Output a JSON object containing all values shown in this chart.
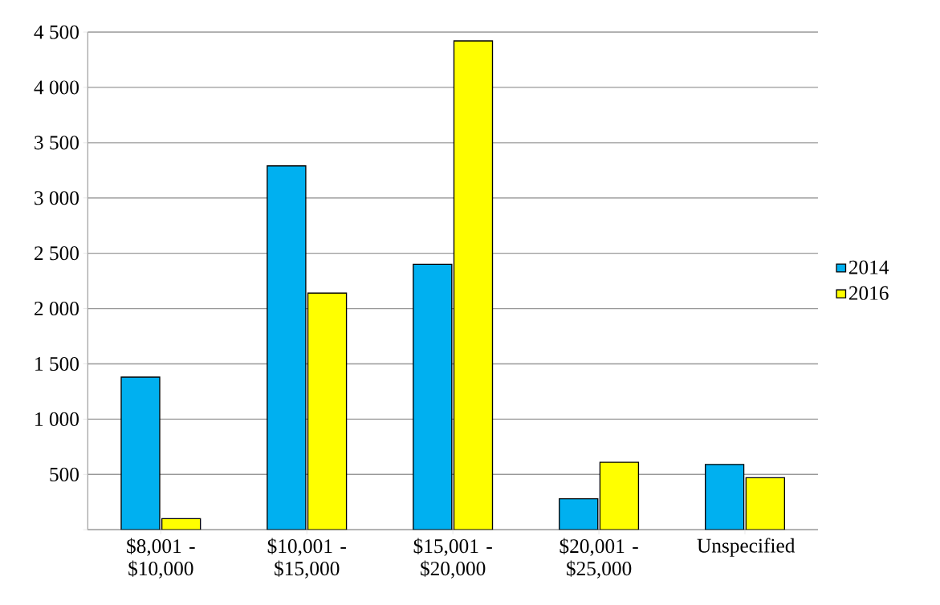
{
  "chart_data": {
    "type": "bar",
    "categories": [
      "$8,001 - $10,000",
      "$10,001 - $15,000",
      "$15,001 - $20,000",
      "$20,001 - $25,000",
      "Unspecified"
    ],
    "series": [
      {
        "name": "2014",
        "color": "#00b0f0",
        "values": [
          1380,
          3290,
          2400,
          280,
          590
        ]
      },
      {
        "name": "2016",
        "color": "#ffff00",
        "values": [
          100,
          2140,
          4420,
          610,
          470
        ]
      }
    ],
    "ylim": [
      0,
      4500
    ],
    "yticks": [
      {
        "value": 0,
        "label": null
      },
      {
        "value": 500,
        "label": "500"
      },
      {
        "value": 1000,
        "label": "1 000"
      },
      {
        "value": 1500,
        "label": "1 500"
      },
      {
        "value": 2000,
        "label": "2 000"
      },
      {
        "value": 2500,
        "label": "2 500"
      },
      {
        "value": 3000,
        "label": "3 000"
      },
      {
        "value": 3500,
        "label": "3 500"
      },
      {
        "value": 4000,
        "label": "4 000"
      },
      {
        "value": 4500,
        "label": "4 500"
      }
    ],
    "grid": "y",
    "legend": "right"
  }
}
